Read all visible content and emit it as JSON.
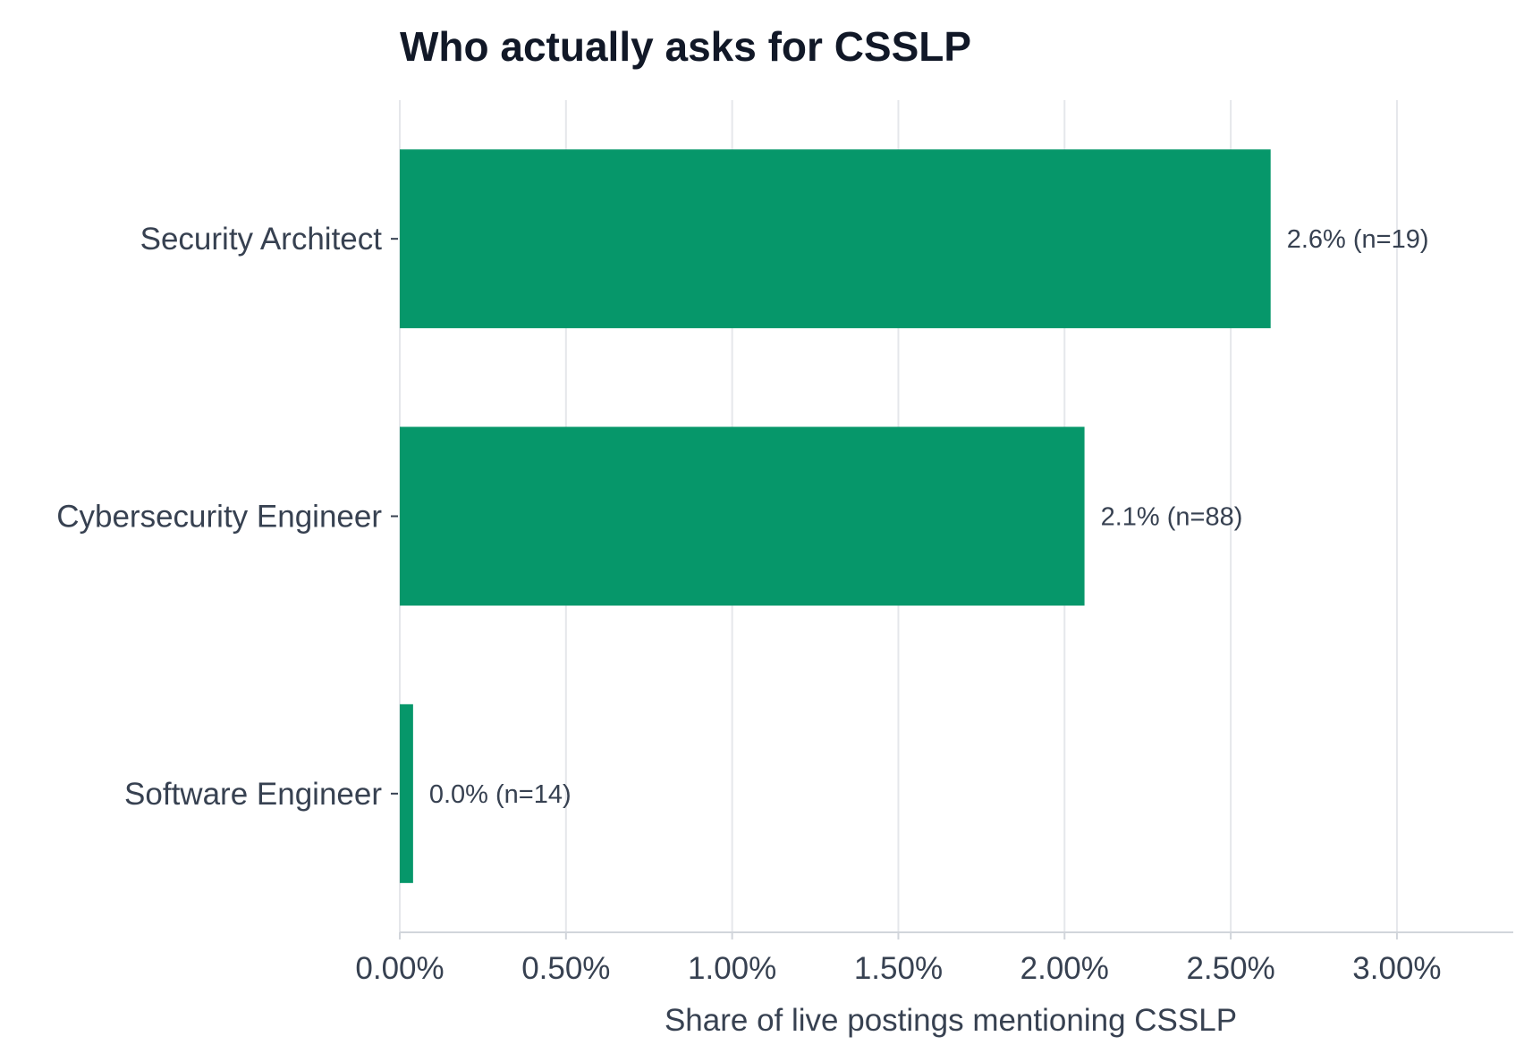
{
  "chart_data": {
    "type": "bar",
    "orientation": "horizontal",
    "title": "Who actually asks for CSSLP",
    "xlabel": "Share of live postings mentioning CSSLP",
    "ylabel": "",
    "categories": [
      "Security Architect",
      "Cybersecurity Engineer",
      "Software Engineer"
    ],
    "values": [
      0.0262,
      0.0206,
      0.0004
    ],
    "data_labels": [
      "2.6%  (n=19)",
      "2.1%  (n=88)",
      "0.0%  (n=14)"
    ],
    "xlim": [
      0,
      0.0335
    ],
    "xticks": [
      0,
      0.005,
      0.01,
      0.015,
      0.02,
      0.025,
      0.03
    ],
    "xtick_labels": [
      "0.00%",
      "0.50%",
      "1.00%",
      "1.50%",
      "2.00%",
      "2.50%",
      "3.00%"
    ],
    "grid": "vertical",
    "legend": "none",
    "colors": {
      "bar": "#06976a",
      "grid": "#e5e7eb",
      "axis": "#d1d5db",
      "text": "#374151",
      "title": "#111827"
    }
  }
}
